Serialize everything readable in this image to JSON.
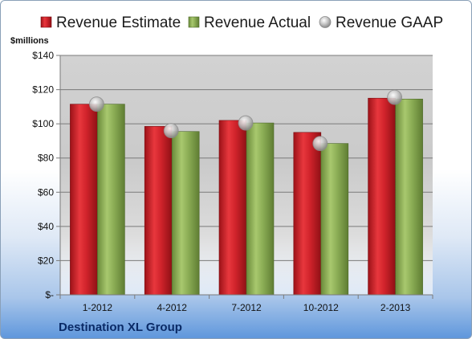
{
  "chart_data": {
    "type": "bar",
    "unit_label": "$millions",
    "company": "Destination XL Group",
    "categories": [
      "1-2012",
      "4-2012",
      "7-2012",
      "10-2012",
      "2-2013"
    ],
    "series": [
      {
        "name": "Revenue Estimate",
        "type": "bar",
        "color": "#d0232b",
        "values": [
          111.5,
          98.5,
          102,
          95,
          115
        ]
      },
      {
        "name": "Revenue Actual",
        "type": "bar",
        "color": "#8bad55",
        "values": [
          111.5,
          95.5,
          100.5,
          88.5,
          114.5
        ]
      },
      {
        "name": "Revenue GAAP",
        "type": "marker",
        "color": "#b8b8b8",
        "values": [
          111.5,
          96,
          100.5,
          88.5,
          115.5
        ]
      }
    ],
    "ylim": [
      0,
      140
    ],
    "yticks": [
      0,
      20,
      40,
      60,
      80,
      100,
      120,
      140
    ],
    "ytick_labels": [
      "$-",
      "$20",
      "$40",
      "$60",
      "$80",
      "$100",
      "$120",
      "$140"
    ],
    "grid": true,
    "legend_position": "top"
  }
}
